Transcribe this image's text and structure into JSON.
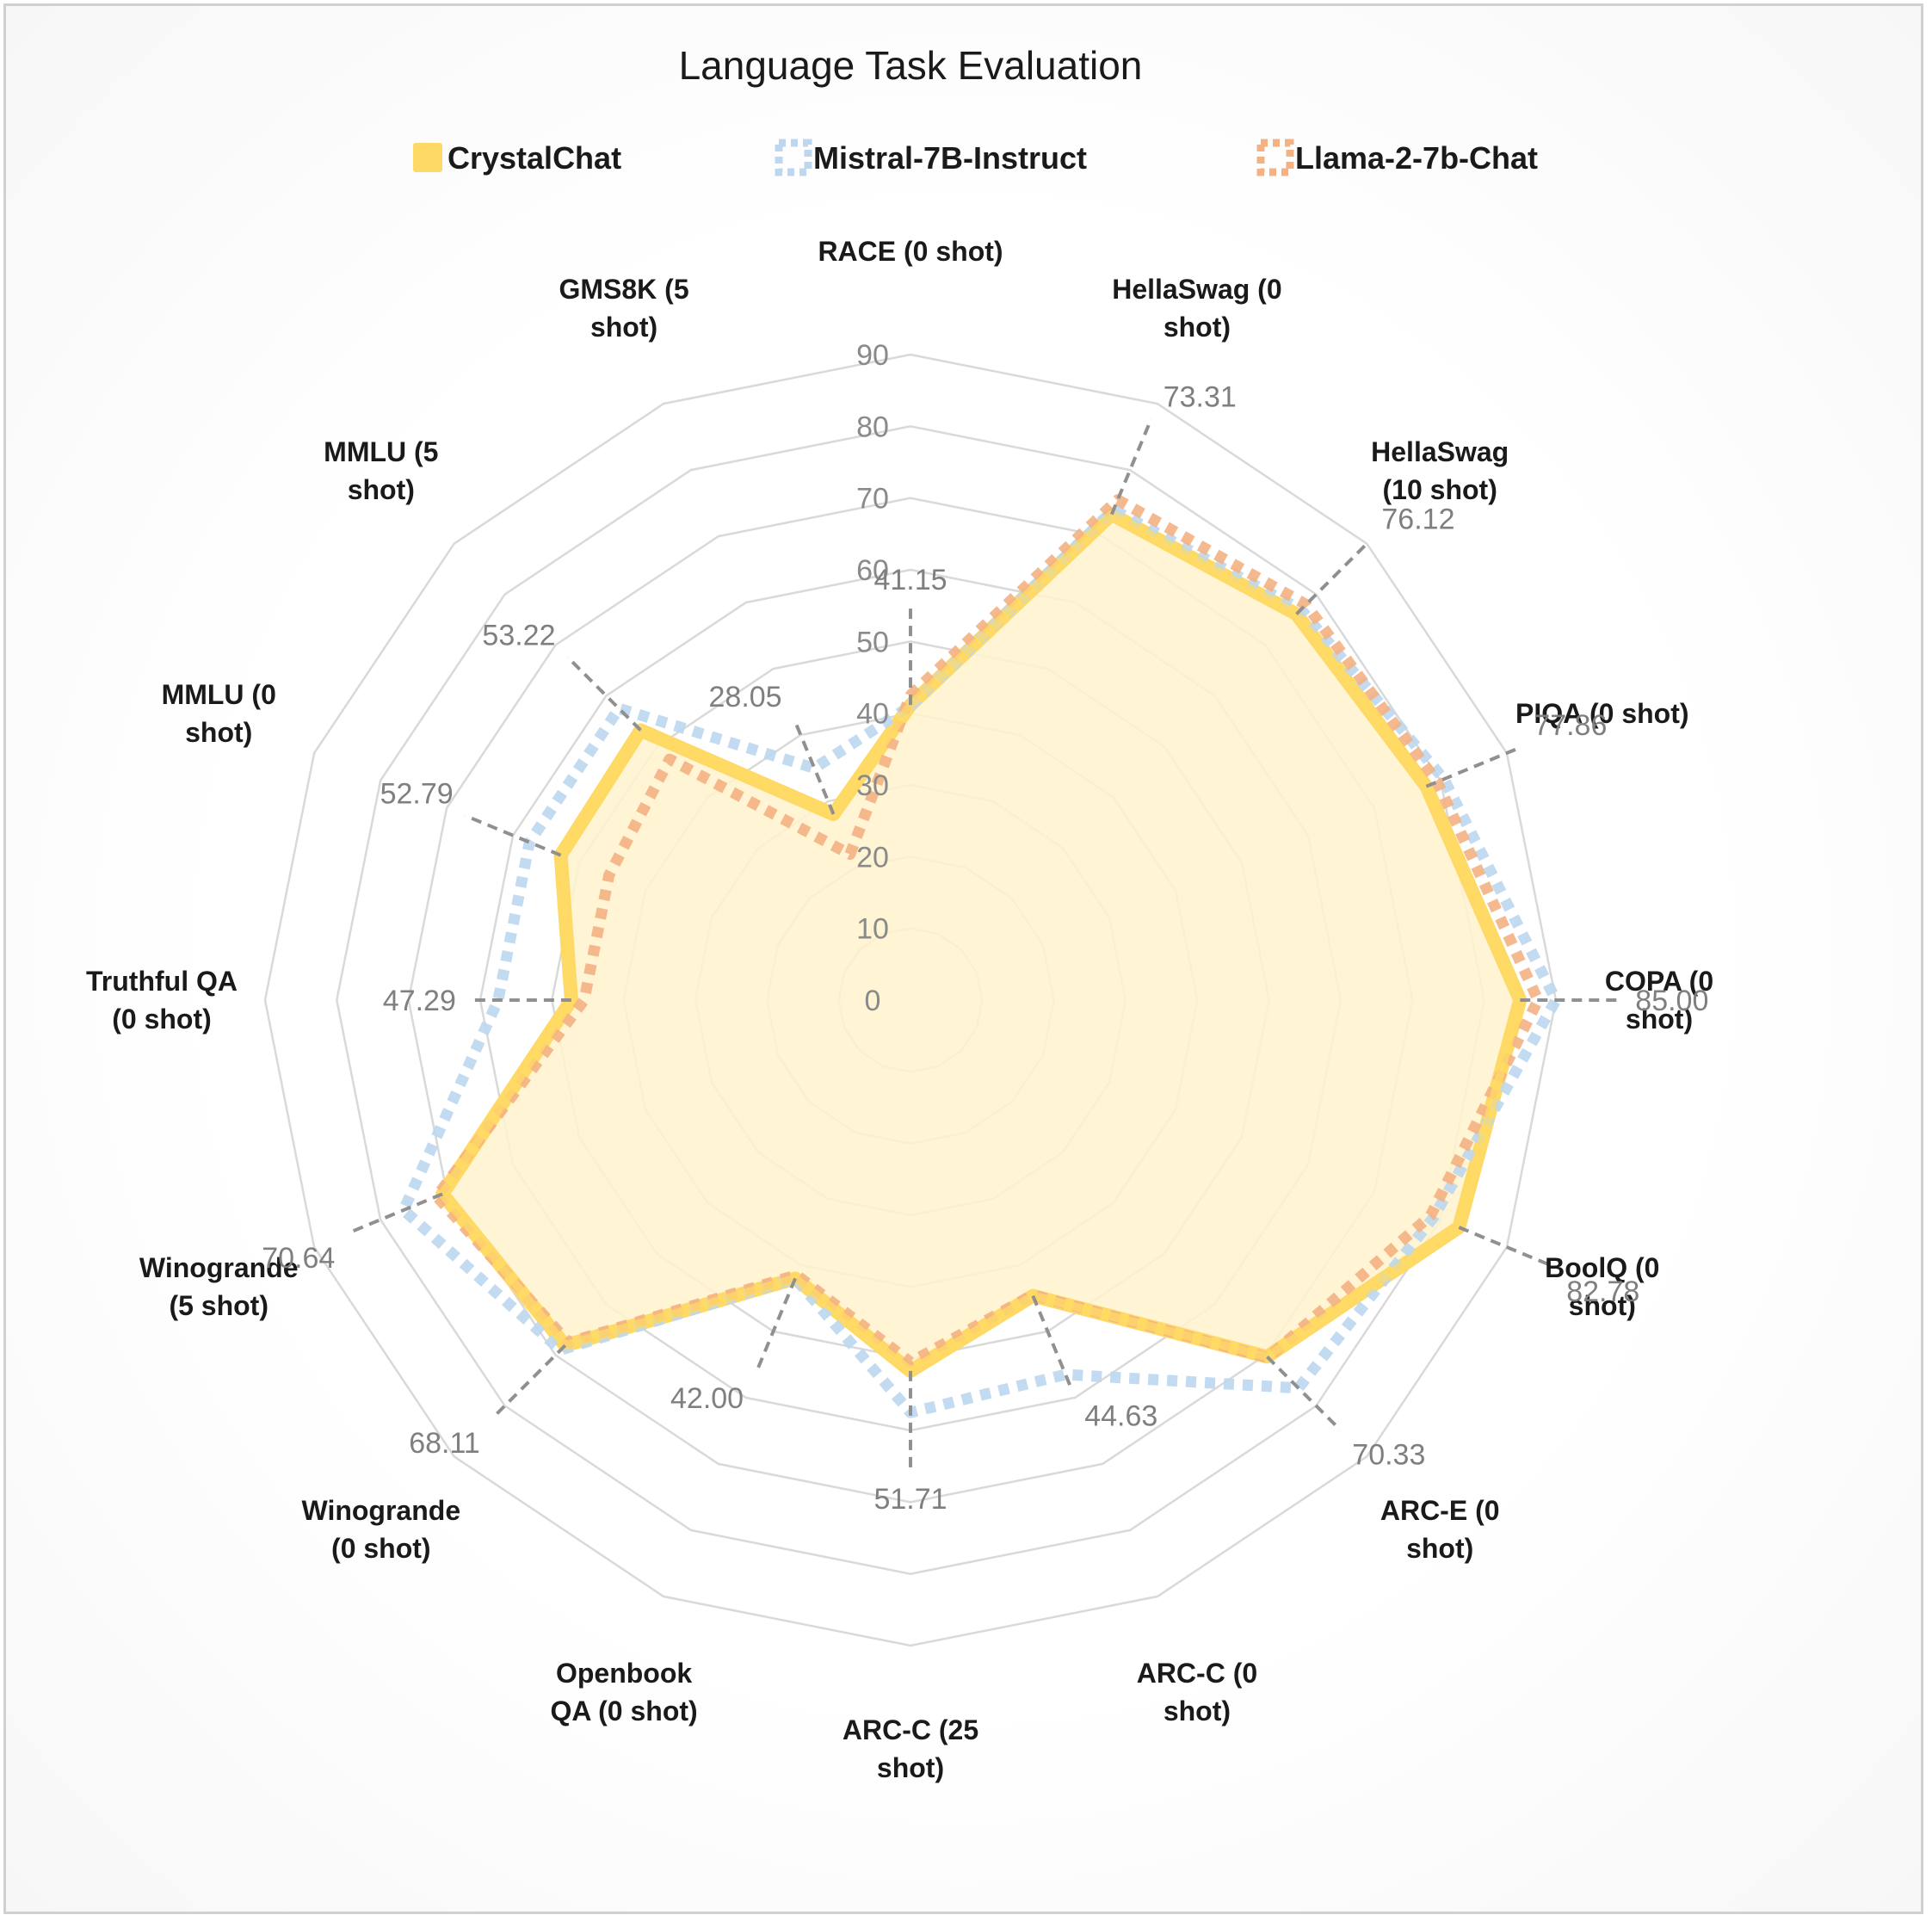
{
  "chart_data": {
    "type": "radar",
    "title": "Language Task Evaluation",
    "legend_position": "top",
    "categories": [
      "RACE (0 shot)",
      "HellaSwag (0 shot)",
      "HellaSwag (10 shot)",
      "PIQA (0 shot)",
      "COPA (0 shot)",
      "BoolQ (0 shot)",
      "ARC-E (0 shot)",
      "ARC-C (0 shot)",
      "ARC-C (25 shot)",
      "Openbook QA (0 shot)",
      "Winogrande (0 shot)",
      "Winogrande (5 shot)",
      "Truthful QA (0 shot)",
      "MMLU (0 shot)",
      "MMLU (5 shot)",
      "GMS8K (5 shot)"
    ],
    "radial_ticks": [
      0,
      10,
      20,
      30,
      40,
      50,
      60,
      70,
      80,
      90
    ],
    "rlim": [
      0,
      90
    ],
    "series": [
      {
        "name": "CrystalChat",
        "color": "#ffd966",
        "values": [
          41.15,
          73.31,
          76.12,
          77.86,
          85.0,
          82.78,
          70.33,
          44.63,
          51.71,
          42.0,
          68.11,
          70.64,
          47.29,
          52.79,
          53.22,
          28.05
        ]
      },
      {
        "name": "Mistral-7B-Instruct",
        "color": "#bdd7ee",
        "values": [
          41.0,
          74.0,
          77.0,
          80.5,
          90.0,
          79.0,
          76.5,
          56.5,
          57.5,
          42.0,
          69.0,
          76.5,
          57.5,
          57.5,
          57.5,
          35.0
        ]
      },
      {
        "name": "Llama-2-7b-Chat",
        "color": "#f4b183",
        "values": [
          42.5,
          75.5,
          78.0,
          79.5,
          87.5,
          78.5,
          70.5,
          44.5,
          50.5,
          41.5,
          67.5,
          71.5,
          45.5,
          45.5,
          47.5,
          22.0
        ]
      }
    ],
    "data_labels": [
      {
        "category_index": 0,
        "text": "41.15"
      },
      {
        "category_index": 1,
        "text": "73.31"
      },
      {
        "category_index": 2,
        "text": "76.12"
      },
      {
        "category_index": 3,
        "text": "77.86"
      },
      {
        "category_index": 4,
        "text": "85.00"
      },
      {
        "category_index": 5,
        "text": "82.78"
      },
      {
        "category_index": 6,
        "text": "70.33"
      },
      {
        "category_index": 7,
        "text": "44.63"
      },
      {
        "category_index": 8,
        "text": "51.71"
      },
      {
        "category_index": 9,
        "text": "42.00"
      },
      {
        "category_index": 10,
        "text": "68.11"
      },
      {
        "category_index": 11,
        "text": "70.64"
      },
      {
        "category_index": 12,
        "text": "47.29"
      },
      {
        "category_index": 13,
        "text": "52.79"
      },
      {
        "category_index": 14,
        "text": "53.22"
      },
      {
        "category_index": 15,
        "text": "28.05"
      }
    ]
  }
}
